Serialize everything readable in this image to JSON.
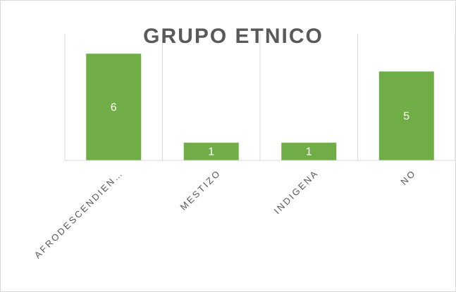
{
  "chart_data": {
    "type": "bar",
    "title": "GRUPO ETNICO",
    "categories": [
      "AFRODESCENDIEN…",
      "MESTIZO",
      "INDIGENA",
      "NO"
    ],
    "values": [
      6,
      1,
      1,
      5
    ],
    "color": "#70ad47",
    "ylim": [
      0,
      7
    ],
    "data_labels": true
  }
}
